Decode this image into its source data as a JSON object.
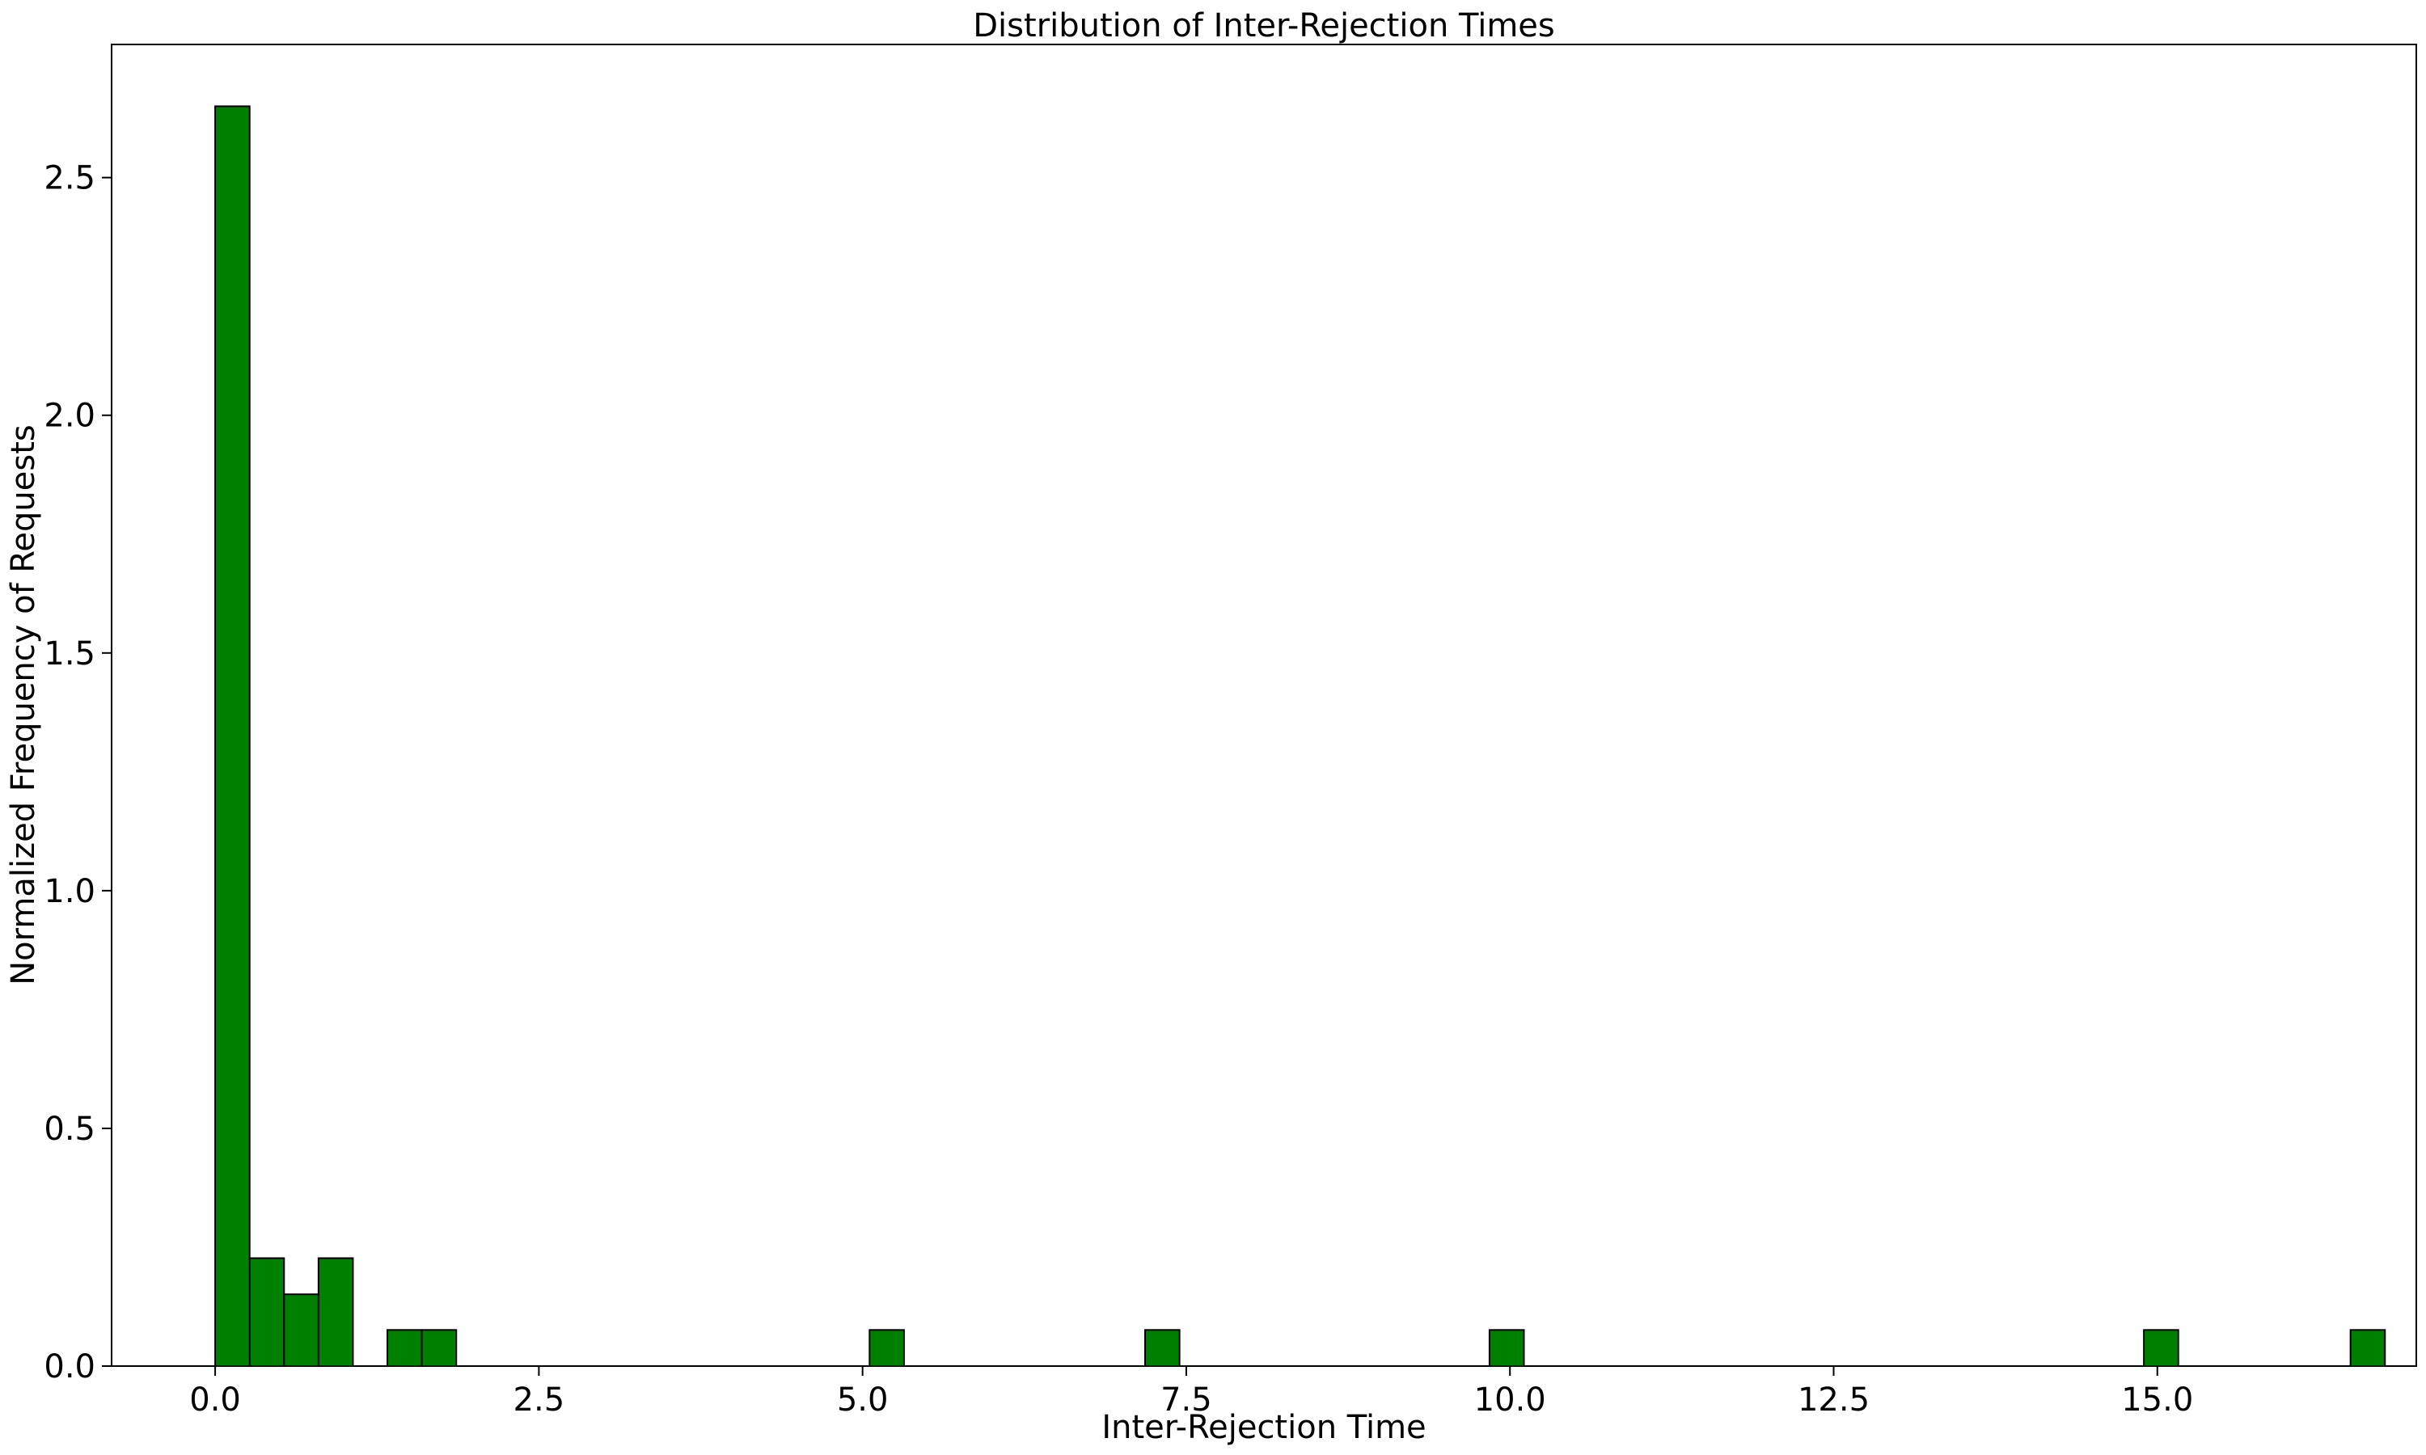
{
  "chart_data": {
    "type": "bar",
    "title": "Distribution of Inter-Rejection Times",
    "xlabel": "Inter-Rejection Time",
    "ylabel": "Normalized Frequency of Requests",
    "xlim": [
      -0.8,
      17.0
    ],
    "ylim": [
      0,
      2.78
    ],
    "grid": false,
    "bar_color": "#008000",
    "edge_color": "#000000",
    "bin_width": 0.266,
    "bins": [
      {
        "x0": 0.0,
        "x1": 0.266,
        "value": 2.65
      },
      {
        "x0": 0.266,
        "x1": 0.532,
        "value": 0.227
      },
      {
        "x0": 0.532,
        "x1": 0.798,
        "value": 0.151
      },
      {
        "x0": 0.798,
        "x1": 1.064,
        "value": 0.227
      },
      {
        "x0": 1.33,
        "x1": 1.596,
        "value": 0.076
      },
      {
        "x0": 1.596,
        "x1": 1.862,
        "value": 0.076
      },
      {
        "x0": 5.054,
        "x1": 5.32,
        "value": 0.076
      },
      {
        "x0": 7.182,
        "x1": 7.448,
        "value": 0.076
      },
      {
        "x0": 9.842,
        "x1": 10.108,
        "value": 0.076
      },
      {
        "x0": 14.896,
        "x1": 15.162,
        "value": 0.076
      },
      {
        "x0": 16.492,
        "x1": 16.758,
        "value": 0.076
      }
    ],
    "xticks": [
      {
        "value": 0.0,
        "label": "0.0"
      },
      {
        "value": 2.5,
        "label": "2.5"
      },
      {
        "value": 5.0,
        "label": "5.0"
      },
      {
        "value": 7.5,
        "label": "7.5"
      },
      {
        "value": 10.0,
        "label": "10.0"
      },
      {
        "value": 12.5,
        "label": "12.5"
      },
      {
        "value": 15.0,
        "label": "15.0"
      }
    ],
    "yticks": [
      {
        "value": 0.0,
        "label": "0.0"
      },
      {
        "value": 0.5,
        "label": "0.5"
      },
      {
        "value": 1.0,
        "label": "1.0"
      },
      {
        "value": 1.5,
        "label": "1.5"
      },
      {
        "value": 2.0,
        "label": "2.0"
      },
      {
        "value": 2.5,
        "label": "2.5"
      }
    ]
  }
}
